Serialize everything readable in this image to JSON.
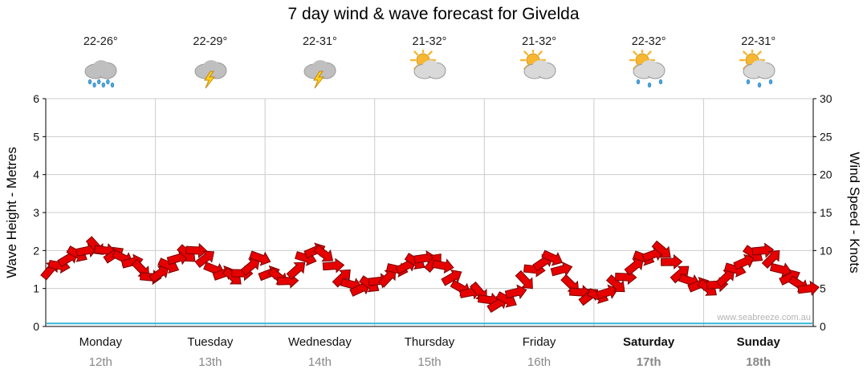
{
  "title": "7 day wind & wave forecast for Givelda",
  "watermark": "www.seabreeze.com.au",
  "axes": {
    "left_label": "Wave Height - Metres",
    "right_label": "Wind Speed - Knots",
    "left_ticks": [
      0,
      1,
      2,
      3,
      4,
      5,
      6
    ],
    "right_ticks": [
      0,
      5,
      10,
      15,
      20,
      25,
      30
    ]
  },
  "days": [
    {
      "name": "Monday",
      "date": "12th",
      "temp": "22-26°",
      "icon": "rain",
      "bold": false
    },
    {
      "name": "Tuesday",
      "date": "13th",
      "temp": "22-29°",
      "icon": "thunderstorm",
      "bold": false
    },
    {
      "name": "Wednesday",
      "date": "14th",
      "temp": "22-31°",
      "icon": "thunderstorm",
      "bold": false
    },
    {
      "name": "Thursday",
      "date": "15th",
      "temp": "21-32°",
      "icon": "partly-cloudy",
      "bold": false
    },
    {
      "name": "Friday",
      "date": "16th",
      "temp": "21-32°",
      "icon": "partly-cloudy",
      "bold": false
    },
    {
      "name": "Saturday",
      "date": "17th",
      "temp": "22-32°",
      "icon": "partly-cloudy-showers",
      "bold": true
    },
    {
      "name": "Sunday",
      "date": "18th",
      "temp": "22-31°",
      "icon": "partly-cloudy-showers",
      "bold": true
    }
  ],
  "chart_data": {
    "type": "line",
    "title": "7 day wind & wave forecast for Givelda",
    "categories": [
      "Monday 12th",
      "Tuesday 13th",
      "Wednesday 14th",
      "Thursday 15th",
      "Friday 16th",
      "Saturday 17th",
      "Sunday 18th"
    ],
    "samples_per_day": 12,
    "xlabel": "",
    "ylabel_left": "Wave Height - Metres",
    "ylabel_right": "Wind Speed - Knots",
    "ylim_left": [
      0,
      6
    ],
    "ylim_right": [
      0,
      30
    ],
    "grid": true,
    "legend": "none",
    "series": [
      {
        "name": "Wind Speed",
        "units": "knots",
        "marker": "red-arrow",
        "values": [
          7.5,
          8,
          9,
          9.5,
          10,
          10.5,
          10,
          9.5,
          9,
          8.5,
          7.5,
          6.5,
          7,
          8,
          9,
          9.5,
          10,
          9,
          7.5,
          7,
          6.5,
          7,
          8,
          9,
          7,
          6.5,
          6,
          7.5,
          9,
          10,
          9.5,
          8,
          6.5,
          5.5,
          5,
          5.5,
          6,
          6.5,
          7.5,
          8,
          8.5,
          9,
          8.5,
          8,
          6.5,
          5,
          4.5,
          4.5,
          3.5,
          3,
          3.5,
          4.5,
          6,
          7.5,
          8.5,
          9,
          7.5,
          5.5,
          4.5,
          4,
          4,
          4.5,
          5.5,
          6.5,
          8,
          9,
          9.5,
          10,
          8.5,
          7,
          6,
          5.5,
          5,
          5.5,
          6.5,
          7.5,
          8.5,
          9.5,
          10,
          9,
          7.5,
          6.5,
          5.5,
          5
        ]
      },
      {
        "name": "Wave Height",
        "units": "metres",
        "marker": "cyan-line",
        "flat_value": 0.08
      }
    ]
  },
  "colors": {
    "arrow_fill": "#e60000",
    "arrow_outline": "#7a0000",
    "wave_line": "#35b6d9",
    "grid": "#cccccc",
    "axis": "#000000",
    "tick_text": "#111111",
    "date_text": "#888888",
    "watermark": "#b4b4b4",
    "cloud": "#d9d9d9",
    "cloud_dark": "#bfbfbf",
    "sun": "#f7b733",
    "bolt": "#ffd21e",
    "raindrop": "#4da6e0"
  }
}
